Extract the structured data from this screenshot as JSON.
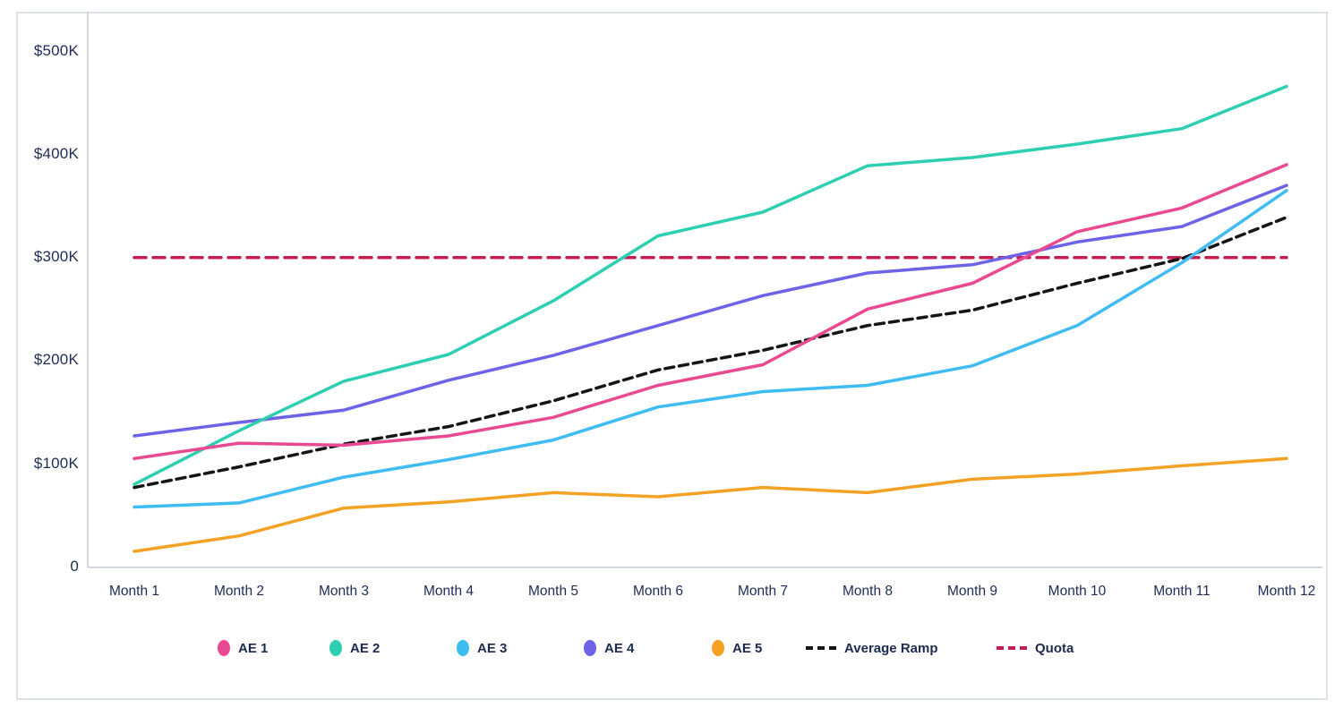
{
  "chart_data": {
    "type": "line",
    "title": "",
    "xlabel": "",
    "ylabel": "",
    "grid": false,
    "legend_position": "bottom",
    "ylim": [
      0,
      520
    ],
    "y_tick_values": [
      500,
      400,
      300,
      200,
      100,
      0
    ],
    "y_tick_labels": [
      "$500K",
      "$400K",
      "$300K",
      "$200K",
      "$100K",
      "0"
    ],
    "x": [
      "Month 1",
      "Month 2",
      "Month 3",
      "Month 4",
      "Month 5",
      "Month 6",
      "Month 7",
      "Month 8",
      "Month 9",
      "Month 10",
      "Month 11",
      "Month 12"
    ],
    "units": "USD thousands",
    "series": [
      {
        "name": "AE 1",
        "color": "#e94990",
        "line_style": "solid",
        "values": [
          105,
          120,
          118,
          127,
          145,
          176,
          196,
          250,
          275,
          325,
          348,
          390
        ]
      },
      {
        "name": "AE 2",
        "color": "#2ecfb1",
        "line_style": "solid",
        "values": [
          80,
          132,
          180,
          206,
          258,
          321,
          344,
          389,
          397,
          410,
          425,
          466
        ]
      },
      {
        "name": "AE 3",
        "color": "#3fbcf2",
        "line_style": "solid",
        "values": [
          58,
          62,
          87,
          104,
          123,
          155,
          170,
          176,
          195,
          234,
          295,
          365
        ]
      },
      {
        "name": "AE 4",
        "color": "#6e63e6",
        "line_style": "solid",
        "values": [
          127,
          140,
          152,
          181,
          205,
          234,
          263,
          285,
          293,
          315,
          330,
          370
        ]
      },
      {
        "name": "AE 5",
        "color": "#f3a226",
        "line_style": "solid",
        "values": [
          15,
          30,
          57,
          63,
          72,
          68,
          77,
          72,
          85,
          90,
          98,
          105
        ]
      },
      {
        "name": "Average Ramp",
        "color": "#151515",
        "line_style": "dashed",
        "values": [
          77,
          97,
          119,
          136,
          161,
          191,
          210,
          234,
          249,
          275,
          299,
          339
        ]
      },
      {
        "name": "Quota",
        "color": "#c51d4f",
        "line_style": "dashed",
        "values": [
          300,
          300,
          300,
          300,
          300,
          300,
          300,
          300,
          300,
          300,
          300,
          300
        ]
      }
    ]
  }
}
